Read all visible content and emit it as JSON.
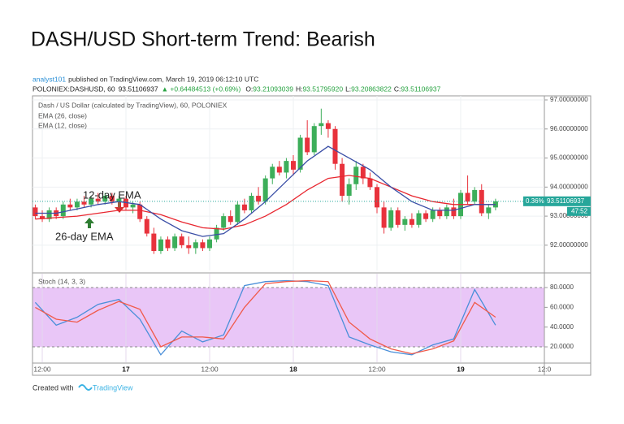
{
  "title": "DASH/USD Short-term Trend: Bearish",
  "header": {
    "author": "analyst101",
    "published": "published on TradingView.com, March 19, 2019 06:12:10 UTC",
    "symbol": "POLONIEX:DASHUSD, 60",
    "last": "93.51106937",
    "change": "▲ +0.64484513 (+0.69%)",
    "ohlc": [
      {
        "label": "O:",
        "value": "93.21093039"
      },
      {
        "label": "H:",
        "value": "93.51795920"
      },
      {
        "label": "L:",
        "value": "93.20863822"
      },
      {
        "label": "C:",
        "value": "93.51106937"
      }
    ]
  },
  "chart_data": [
    {
      "type": "candlestick",
      "legend": "Dash / US Dollar (calculated by TradingView), 60, POLONIEX",
      "up_color": "#3dae5a",
      "down_color": "#e8323c",
      "xlim": [
        -1.4,
        72
      ],
      "ylim": [
        91.13,
        97.14
      ],
      "xticks": [
        {
          "value": 0,
          "label": "12:00"
        },
        {
          "value": 12,
          "label": "17"
        },
        {
          "value": 24,
          "label": "12:00"
        },
        {
          "value": 36,
          "label": "18"
        },
        {
          "value": 48,
          "label": "12:00"
        },
        {
          "value": 60,
          "label": "19"
        },
        {
          "value": 72,
          "label": "12:0"
        }
      ],
      "yticks": [
        {
          "value": 92,
          "label": "92.00000000"
        },
        {
          "value": 93,
          "label": "93.00000000"
        },
        {
          "value": 94,
          "label": "94.00000000"
        },
        {
          "value": 95,
          "label": "95.00000000"
        },
        {
          "value": 96,
          "label": "96.00000000"
        },
        {
          "value": 97,
          "label": "97.00000000"
        }
      ],
      "x": [
        -1,
        0,
        1,
        2,
        3,
        4,
        5,
        6,
        7,
        8,
        9,
        10,
        11,
        12,
        13,
        14,
        15,
        16,
        17,
        18,
        19,
        20,
        21,
        22,
        23,
        24,
        25,
        26,
        27,
        28,
        29,
        30,
        31,
        32,
        33,
        34,
        35,
        36,
        37,
        38,
        39,
        40,
        41,
        42,
        43,
        44,
        45,
        46,
        47,
        48,
        49,
        50,
        51,
        52,
        53,
        54,
        55,
        56,
        57,
        58,
        59,
        60,
        61,
        62,
        63,
        64,
        65
      ],
      "open": [
        93.3,
        93.0,
        92.9,
        93.2,
        93.0,
        93.4,
        93.3,
        93.5,
        93.4,
        93.6,
        93.5,
        93.7,
        93.5,
        93.6,
        93.3,
        93.4,
        92.9,
        92.4,
        91.8,
        92.2,
        91.9,
        92.3,
        92.0,
        91.9,
        92.1,
        91.9,
        92.2,
        92.6,
        93.0,
        92.8,
        93.4,
        93.2,
        93.7,
        93.5,
        94.3,
        94.7,
        94.5,
        94.9,
        94.6,
        95.7,
        95.2,
        96.1,
        96.2,
        96.0,
        94.8,
        93.7,
        94.1,
        94.7,
        94.3,
        94.0,
        93.3,
        92.6,
        93.2,
        92.7,
        92.9,
        92.7,
        93.1,
        92.9,
        93.2,
        93.0,
        93.3,
        93.0,
        93.8,
        93.5,
        93.9,
        93.1,
        93.3
      ],
      "high": [
        93.4,
        93.2,
        93.3,
        93.3,
        93.5,
        93.6,
        93.6,
        93.7,
        93.7,
        93.8,
        93.8,
        93.8,
        93.7,
        93.7,
        93.5,
        93.5,
        93.0,
        92.6,
        92.3,
        92.3,
        92.4,
        92.4,
        92.3,
        92.2,
        92.2,
        92.3,
        92.7,
        93.1,
        93.2,
        93.5,
        93.6,
        93.8,
        94.0,
        94.4,
        94.8,
        94.9,
        95.0,
        95.1,
        95.8,
        96.3,
        96.2,
        96.7,
        96.3,
        96.1,
        95.0,
        94.3,
        94.9,
        94.8,
        94.5,
        94.1,
        93.5,
        93.3,
        93.3,
        93.0,
        93.1,
        93.2,
        93.2,
        93.3,
        93.3,
        93.4,
        93.6,
        93.9,
        94.4,
        94.0,
        94.1,
        93.4,
        93.6
      ],
      "low": [
        92.9,
        92.8,
        92.8,
        92.9,
        92.9,
        93.2,
        93.2,
        93.3,
        93.3,
        93.4,
        93.4,
        93.4,
        93.3,
        93.2,
        93.1,
        92.8,
        92.3,
        91.7,
        91.7,
        91.8,
        91.8,
        91.9,
        91.7,
        91.7,
        91.8,
        91.8,
        92.1,
        92.5,
        92.7,
        92.7,
        93.1,
        93.1,
        93.4,
        93.4,
        94.1,
        94.4,
        94.3,
        94.4,
        94.5,
        95.1,
        95.1,
        95.8,
        95.7,
        94.6,
        93.5,
        93.4,
        93.9,
        94.1,
        93.9,
        93.1,
        92.4,
        92.5,
        92.6,
        92.5,
        92.6,
        92.6,
        92.8,
        92.8,
        92.9,
        92.9,
        92.9,
        92.9,
        93.4,
        93.4,
        93.0,
        92.9,
        93.2
      ],
      "close": [
        93.0,
        92.9,
        93.2,
        93.0,
        93.4,
        93.3,
        93.5,
        93.4,
        93.6,
        93.5,
        93.7,
        93.5,
        93.6,
        93.3,
        93.4,
        92.9,
        92.4,
        91.8,
        92.2,
        91.9,
        92.3,
        92.0,
        91.9,
        92.1,
        91.9,
        92.2,
        92.6,
        93.0,
        92.8,
        93.4,
        93.2,
        93.7,
        93.5,
        94.3,
        94.7,
        94.5,
        94.9,
        94.6,
        95.7,
        95.2,
        96.1,
        96.2,
        96.0,
        94.8,
        93.7,
        94.1,
        94.7,
        94.3,
        94.0,
        93.3,
        92.6,
        93.2,
        92.7,
        92.9,
        92.7,
        93.1,
        92.9,
        93.2,
        93.0,
        93.3,
        93.0,
        93.8,
        93.5,
        93.9,
        93.1,
        93.3,
        93.51
      ],
      "series": [
        {
          "name": "EMA (26, close)",
          "color": "#e8262f",
          "x": [
            -1,
            2,
            5,
            8,
            11,
            14,
            17,
            20,
            23,
            26,
            29,
            32,
            35,
            38,
            41,
            44,
            47,
            50,
            53,
            56,
            59,
            62,
            65
          ],
          "values": [
            92.9,
            92.95,
            93.0,
            93.1,
            93.2,
            93.2,
            93.05,
            92.8,
            92.6,
            92.55,
            92.7,
            93.0,
            93.4,
            93.9,
            94.3,
            94.4,
            94.3,
            94.0,
            93.7,
            93.5,
            93.4,
            93.4,
            93.4
          ]
        },
        {
          "name": "EMA (12, close)",
          "color": "#3a4ea6",
          "x": [
            -1,
            2,
            5,
            8,
            11,
            14,
            17,
            20,
            23,
            26,
            29,
            32,
            35,
            38,
            41,
            44,
            47,
            50,
            53,
            56,
            59,
            62,
            65
          ],
          "values": [
            93.1,
            93.1,
            93.25,
            93.4,
            93.5,
            93.4,
            92.9,
            92.5,
            92.3,
            92.4,
            92.9,
            93.5,
            94.2,
            94.9,
            95.4,
            95.0,
            94.6,
            94.0,
            93.5,
            93.2,
            93.2,
            93.4,
            93.4
          ]
        }
      ],
      "price_label": {
        "change": "0.36%",
        "price": {
          "value": 93.51106937,
          "label": "93.51106937"
        },
        "countdown": "47:52",
        "color": "#26a69a"
      },
      "annotations": [
        {
          "text": "12-day EMA"
        },
        {
          "text": "26-day EMA"
        }
      ]
    },
    {
      "type": "line",
      "legend": "Stoch (14, 3, 3)",
      "ylim": [
        4.4,
        94
      ],
      "band": [
        20,
        80
      ],
      "band_color": "#e9c6f7",
      "yticks": [
        {
          "value": 20,
          "label": "20.0000"
        },
        {
          "value": 40,
          "label": "40.0000"
        },
        {
          "value": 60,
          "label": "60.0000"
        },
        {
          "value": 80,
          "label": "80.0000"
        }
      ],
      "series": [
        {
          "color": "#4a8fd9",
          "x": [
            -1,
            2,
            5,
            8,
            11,
            14,
            17,
            20,
            23,
            26,
            29,
            32,
            35,
            38,
            41,
            44,
            47,
            50,
            53,
            56,
            59,
            62,
            65
          ],
          "values": [
            65,
            42,
            50,
            63,
            68,
            48,
            12,
            36,
            25,
            32,
            82,
            86,
            87,
            86,
            82,
            30,
            22,
            15,
            12,
            22,
            28,
            78,
            42
          ]
        },
        {
          "color": "#f05a4a",
          "x": [
            -1,
            2,
            5,
            8,
            11,
            14,
            17,
            20,
            23,
            26,
            29,
            32,
            35,
            38,
            41,
            44,
            47,
            50,
            53,
            56,
            59,
            62,
            65
          ],
          "values": [
            60,
            48,
            45,
            57,
            66,
            58,
            20,
            30,
            30,
            28,
            60,
            84,
            86,
            87,
            86,
            45,
            28,
            18,
            13,
            18,
            26,
            65,
            50
          ]
        }
      ]
    }
  ],
  "footer": {
    "created": "Created with",
    "brand": "TradingView"
  }
}
